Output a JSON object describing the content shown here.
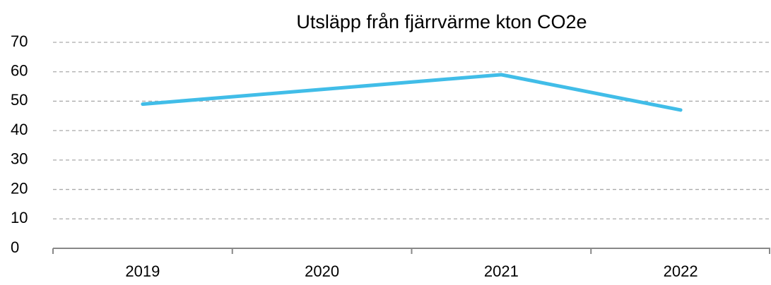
{
  "chart_data": {
    "type": "line",
    "title": "Utsläpp från fjärrvärme kton CO2e",
    "categories": [
      "2019",
      "2020",
      "2021",
      "2022"
    ],
    "series": [
      {
        "name": "Utsläpp",
        "color": "#41bde8",
        "values": [
          49,
          54,
          59,
          47
        ]
      }
    ],
    "ylim": [
      0,
      70
    ],
    "yticks": [
      0,
      10,
      20,
      30,
      40,
      50,
      60,
      70
    ],
    "grid": true
  }
}
